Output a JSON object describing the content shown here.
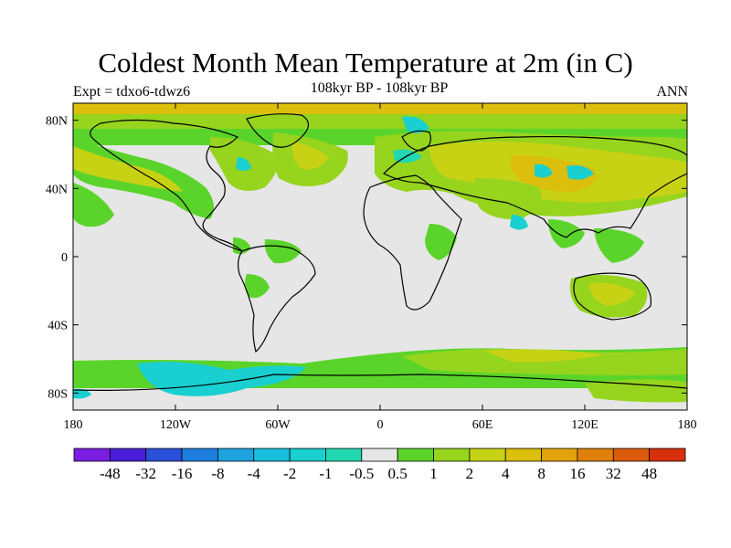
{
  "title": "Coldest Month Mean Temperature at 2m (in C)",
  "subtitle": "108kyr BP - 108kyr BP",
  "experiment": "Expt = tdxo6-tdwz6",
  "season": "ANN",
  "lon_ticks": [
    "180",
    "120W",
    "60W",
    "0",
    "60E",
    "120E",
    "180"
  ],
  "lat_ticks": [
    "80N",
    "40N",
    "0",
    "40S",
    "80S"
  ],
  "colorbar": {
    "labels": [
      "-48",
      "-32",
      "-16",
      "-8",
      "-4",
      "-2",
      "-1",
      "-0.5",
      "0.5",
      "1",
      "2",
      "4",
      "8",
      "16",
      "32",
      "48"
    ],
    "colors": [
      "#7a1fe0",
      "#4a1ed8",
      "#2a4fd8",
      "#1e7ee0",
      "#1ea2e0",
      "#18c0de",
      "#19cfd0",
      "#22d8b2",
      "#e6e6e6",
      "#5ad42a",
      "#96d41e",
      "#c8d214",
      "#dcbe0c",
      "#e2a20c",
      "#e0800c",
      "#dc5a0c",
      "#d8300c"
    ]
  },
  "map_colors": {
    "land_outline": "#000000",
    "neutral": "#e6e6e6",
    "green": "#5ad42a",
    "light_green": "#96d41e",
    "yellow_green": "#c8d214",
    "yellow": "#dcbe0c",
    "orange": "#e2a20c",
    "cyan": "#19cfd0",
    "teal": "#22d8b2"
  }
}
